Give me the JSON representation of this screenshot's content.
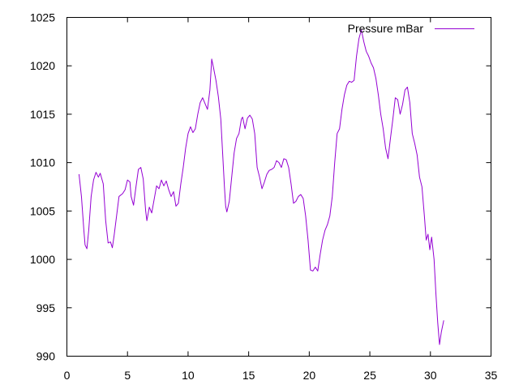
{
  "chart_data": {
    "type": "line",
    "title": "",
    "xlabel": "",
    "ylabel": "",
    "xlim": [
      0,
      35
    ],
    "ylim": [
      990,
      1025
    ],
    "xticks": [
      0,
      5,
      10,
      15,
      20,
      25,
      30,
      35
    ],
    "yticks": [
      990,
      995,
      1000,
      1005,
      1010,
      1015,
      1020,
      1025
    ],
    "grid": false,
    "legend": "top-right",
    "series": [
      {
        "name": "Pressure mBar",
        "color": "#9400d3",
        "points": [
          [
            1.0,
            1008.8
          ],
          [
            1.2,
            1006.5
          ],
          [
            1.4,
            1003.0
          ],
          [
            1.5,
            1001.5
          ],
          [
            1.65,
            1001.1
          ],
          [
            1.8,
            1003.0
          ],
          [
            2.0,
            1006.5
          ],
          [
            2.2,
            1008.2
          ],
          [
            2.4,
            1009.0
          ],
          [
            2.6,
            1008.5
          ],
          [
            2.75,
            1008.9
          ],
          [
            3.0,
            1007.8
          ],
          [
            3.2,
            1004.0
          ],
          [
            3.4,
            1001.7
          ],
          [
            3.6,
            1001.8
          ],
          [
            3.75,
            1001.2
          ],
          [
            3.9,
            1002.5
          ],
          [
            4.1,
            1004.5
          ],
          [
            4.3,
            1006.5
          ],
          [
            4.6,
            1006.8
          ],
          [
            4.8,
            1007.2
          ],
          [
            5.0,
            1008.2
          ],
          [
            5.2,
            1008.0
          ],
          [
            5.3,
            1006.5
          ],
          [
            5.5,
            1005.6
          ],
          [
            5.7,
            1007.5
          ],
          [
            5.9,
            1009.3
          ],
          [
            6.1,
            1009.5
          ],
          [
            6.3,
            1008.3
          ],
          [
            6.5,
            1005.0
          ],
          [
            6.6,
            1004.0
          ],
          [
            6.8,
            1005.4
          ],
          [
            7.0,
            1004.8
          ],
          [
            7.2,
            1006.2
          ],
          [
            7.4,
            1007.6
          ],
          [
            7.6,
            1007.3
          ],
          [
            7.8,
            1008.2
          ],
          [
            8.0,
            1007.6
          ],
          [
            8.2,
            1008.1
          ],
          [
            8.4,
            1007.2
          ],
          [
            8.6,
            1006.5
          ],
          [
            8.8,
            1007.0
          ],
          [
            9.0,
            1005.5
          ],
          [
            9.2,
            1005.8
          ],
          [
            9.4,
            1007.8
          ],
          [
            9.6,
            1009.5
          ],
          [
            9.8,
            1011.5
          ],
          [
            10.0,
            1013.0
          ],
          [
            10.2,
            1013.7
          ],
          [
            10.4,
            1013.1
          ],
          [
            10.6,
            1013.5
          ],
          [
            10.8,
            1015.0
          ],
          [
            11.0,
            1016.2
          ],
          [
            11.2,
            1016.7
          ],
          [
            11.4,
            1016.1
          ],
          [
            11.6,
            1015.5
          ],
          [
            11.8,
            1017.5
          ],
          [
            11.95,
            1020.7
          ],
          [
            12.1,
            1019.8
          ],
          [
            12.3,
            1018.5
          ],
          [
            12.5,
            1016.8
          ],
          [
            12.7,
            1014.5
          ],
          [
            12.85,
            1011.0
          ],
          [
            13.0,
            1007.5
          ],
          [
            13.1,
            1005.5
          ],
          [
            13.2,
            1004.9
          ],
          [
            13.4,
            1006.0
          ],
          [
            13.6,
            1008.5
          ],
          [
            13.8,
            1011.0
          ],
          [
            14.0,
            1012.5
          ],
          [
            14.2,
            1013.0
          ],
          [
            14.4,
            1014.5
          ],
          [
            14.5,
            1014.7
          ],
          [
            14.7,
            1013.5
          ],
          [
            14.9,
            1014.6
          ],
          [
            15.1,
            1014.9
          ],
          [
            15.3,
            1014.5
          ],
          [
            15.5,
            1013.0
          ],
          [
            15.7,
            1009.5
          ],
          [
            15.9,
            1008.5
          ],
          [
            16.1,
            1007.3
          ],
          [
            16.3,
            1008.0
          ],
          [
            16.5,
            1008.8
          ],
          [
            16.7,
            1009.2
          ],
          [
            16.9,
            1009.3
          ],
          [
            17.1,
            1009.5
          ],
          [
            17.3,
            1010.2
          ],
          [
            17.5,
            1010.0
          ],
          [
            17.7,
            1009.5
          ],
          [
            17.9,
            1010.4
          ],
          [
            18.1,
            1010.3
          ],
          [
            18.3,
            1009.5
          ],
          [
            18.5,
            1007.8
          ],
          [
            18.7,
            1005.8
          ],
          [
            18.9,
            1006.0
          ],
          [
            19.1,
            1006.5
          ],
          [
            19.3,
            1006.7
          ],
          [
            19.5,
            1006.3
          ],
          [
            19.7,
            1004.5
          ],
          [
            19.9,
            1002.0
          ],
          [
            20.1,
            998.9
          ],
          [
            20.3,
            998.8
          ],
          [
            20.5,
            999.2
          ],
          [
            20.7,
            998.8
          ],
          [
            20.9,
            1000.5
          ],
          [
            21.1,
            1002.0
          ],
          [
            21.3,
            1003.0
          ],
          [
            21.5,
            1003.6
          ],
          [
            21.7,
            1004.5
          ],
          [
            21.9,
            1006.5
          ],
          [
            22.1,
            1010.0
          ],
          [
            22.3,
            1013.0
          ],
          [
            22.5,
            1013.5
          ],
          [
            22.7,
            1015.5
          ],
          [
            22.9,
            1017.0
          ],
          [
            23.1,
            1018.0
          ],
          [
            23.3,
            1018.4
          ],
          [
            23.5,
            1018.3
          ],
          [
            23.7,
            1018.5
          ],
          [
            23.9,
            1021.0
          ],
          [
            24.1,
            1022.8
          ],
          [
            24.3,
            1023.7
          ],
          [
            24.5,
            1022.5
          ],
          [
            24.7,
            1021.5
          ],
          [
            24.9,
            1021.0
          ],
          [
            25.1,
            1020.3
          ],
          [
            25.3,
            1019.8
          ],
          [
            25.5,
            1018.7
          ],
          [
            25.7,
            1017.0
          ],
          [
            25.9,
            1015.0
          ],
          [
            26.1,
            1013.5
          ],
          [
            26.3,
            1011.5
          ],
          [
            26.5,
            1010.4
          ],
          [
            26.7,
            1012.5
          ],
          [
            26.9,
            1014.5
          ],
          [
            27.1,
            1016.7
          ],
          [
            27.3,
            1016.5
          ],
          [
            27.5,
            1015.0
          ],
          [
            27.7,
            1016.0
          ],
          [
            27.9,
            1017.5
          ],
          [
            28.1,
            1017.8
          ],
          [
            28.3,
            1016.2
          ],
          [
            28.5,
            1013.0
          ],
          [
            28.7,
            1012.0
          ],
          [
            28.9,
            1010.8
          ],
          [
            29.1,
            1008.5
          ],
          [
            29.3,
            1007.5
          ],
          [
            29.5,
            1004.5
          ],
          [
            29.65,
            1002.0
          ],
          [
            29.8,
            1002.6
          ],
          [
            29.95,
            1001.0
          ],
          [
            30.1,
            1002.3
          ],
          [
            30.3,
            1000.0
          ],
          [
            30.45,
            996.5
          ],
          [
            30.6,
            993.5
          ],
          [
            30.75,
            991.2
          ],
          [
            30.9,
            992.5
          ],
          [
            31.1,
            993.7
          ]
        ]
      }
    ]
  }
}
